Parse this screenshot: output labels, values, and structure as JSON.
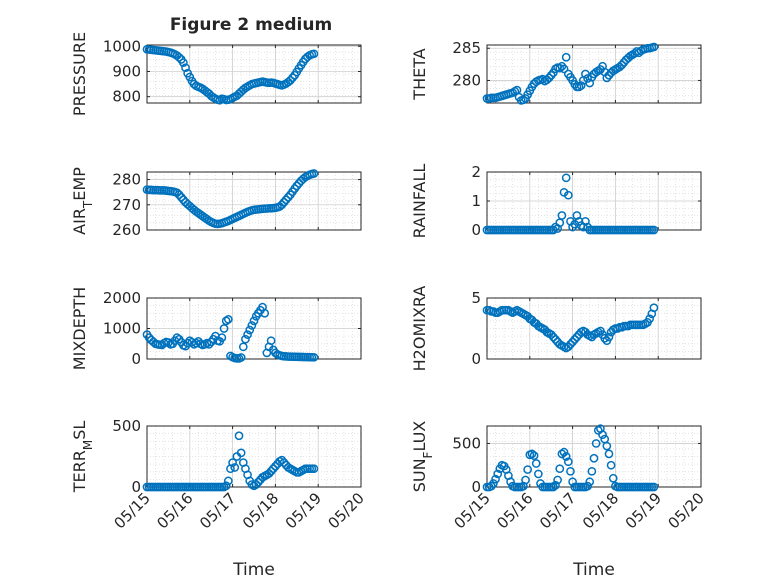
{
  "figure": {
    "title": "Figure 2 medium",
    "xlabel": "Time",
    "x_tick_labels": [
      "05/15",
      "05/16",
      "05/17",
      "05/18",
      "05/19",
      "05/20"
    ]
  },
  "style": {
    "marker_color": "#0072BD",
    "axes_color": "#262626",
    "grid_color": "#DADADA",
    "background": "#FFFFFF"
  },
  "chart_data": [
    {
      "type": "scatter",
      "ylabel": "PRESSURE",
      "xlim": [
        0,
        5
      ],
      "ylim": [
        775,
        1005
      ],
      "yticks": [
        800,
        900,
        1000
      ],
      "grid": true,
      "x": [
        0.0,
        0.05,
        0.1,
        0.15,
        0.2,
        0.25,
        0.3,
        0.35,
        0.4,
        0.45,
        0.5,
        0.55,
        0.6,
        0.65,
        0.7,
        0.75,
        0.8,
        0.85,
        0.9,
        0.95,
        1.0,
        1.05,
        1.1,
        1.15,
        1.2,
        1.25,
        1.3,
        1.35,
        1.4,
        1.45,
        1.5,
        1.55,
        1.6,
        1.65,
        1.7,
        1.75,
        1.8,
        1.85,
        1.9,
        1.95,
        2.0,
        2.05,
        2.1,
        2.15,
        2.2,
        2.25,
        2.3,
        2.35,
        2.4,
        2.45,
        2.5,
        2.55,
        2.6,
        2.65,
        2.7,
        2.75,
        2.8,
        2.85,
        2.9,
        2.95,
        3.0,
        3.05,
        3.1,
        3.15,
        3.2,
        3.25,
        3.3,
        3.35,
        3.4,
        3.45,
        3.5,
        3.55,
        3.6,
        3.65,
        3.7,
        3.75,
        3.8,
        3.85,
        3.9
      ],
      "y": [
        988,
        987,
        986,
        985,
        984,
        983,
        982,
        981,
        980,
        979,
        977,
        975,
        972,
        968,
        963,
        956,
        948,
        935,
        915,
        893,
        878,
        862,
        850,
        843,
        839,
        836,
        831,
        825,
        818,
        812,
        803,
        797,
        792,
        788,
        786,
        792,
        790,
        787,
        788,
        790,
        795,
        800,
        804,
        812,
        820,
        828,
        835,
        840,
        845,
        850,
        852,
        854,
        856,
        858,
        860,
        858,
        856,
        855,
        856,
        855,
        852,
        850,
        847,
        845,
        848,
        852,
        858,
        865,
        875,
        885,
        898,
        912,
        925,
        938,
        950,
        958,
        964,
        968,
        970
      ]
    },
    {
      "type": "scatter",
      "ylabel": "THETA",
      "xlim": [
        0,
        5
      ],
      "ylim": [
        276.5,
        285.5
      ],
      "yticks": [
        280,
        285
      ],
      "grid": true,
      "x": [
        0.0,
        0.05,
        0.1,
        0.15,
        0.2,
        0.25,
        0.3,
        0.35,
        0.4,
        0.45,
        0.5,
        0.55,
        0.6,
        0.65,
        0.7,
        0.75,
        0.8,
        0.85,
        0.9,
        0.95,
        1.0,
        1.05,
        1.1,
        1.15,
        1.2,
        1.25,
        1.3,
        1.35,
        1.4,
        1.45,
        1.5,
        1.55,
        1.6,
        1.65,
        1.7,
        1.75,
        1.8,
        1.85,
        1.9,
        1.95,
        2.0,
        2.05,
        2.1,
        2.15,
        2.2,
        2.25,
        2.3,
        2.35,
        2.4,
        2.45,
        2.5,
        2.55,
        2.6,
        2.65,
        2.7,
        2.75,
        2.8,
        2.85,
        2.9,
        2.95,
        3.0,
        3.05,
        3.1,
        3.15,
        3.2,
        3.25,
        3.3,
        3.35,
        3.4,
        3.45,
        3.5,
        3.55,
        3.6,
        3.65,
        3.7,
        3.75,
        3.8,
        3.85,
        3.9
      ],
      "y": [
        277.2,
        277.2,
        277.3,
        277.3,
        277.3,
        277.4,
        277.5,
        277.6,
        277.7,
        277.8,
        277.9,
        278.0,
        278.1,
        278.3,
        278.5,
        277.4,
        276.9,
        277.0,
        277.2,
        277.8,
        278.4,
        279.0,
        279.5,
        279.8,
        280.0,
        280.1,
        280.2,
        279.9,
        280.1,
        280.4,
        280.8,
        281.2,
        281.8,
        282.0,
        281.9,
        282.2,
        281.8,
        283.6,
        281.0,
        280.5,
        280.0,
        279.4,
        279.0,
        279.0,
        279.2,
        280.0,
        281.0,
        280.3,
        279.6,
        280.5,
        281.0,
        281.3,
        281.5,
        281.7,
        282.2,
        281.3,
        280.4,
        280.8,
        281.2,
        281.5,
        281.7,
        281.9,
        282.1,
        282.4,
        282.8,
        283.2,
        283.5,
        283.8,
        284.0,
        284.2,
        284.5,
        284.3,
        284.6,
        284.8,
        284.9,
        285.0,
        285.0,
        285.1,
        285.2
      ]
    },
    {
      "type": "scatter",
      "ylabel": "AIR_TEMP",
      "xlim": [
        0,
        5
      ],
      "ylim": [
        260,
        283
      ],
      "yticks": [
        260,
        270,
        280
      ],
      "grid": true,
      "x": [
        0.0,
        0.05,
        0.1,
        0.15,
        0.2,
        0.25,
        0.3,
        0.35,
        0.4,
        0.45,
        0.5,
        0.55,
        0.6,
        0.65,
        0.7,
        0.75,
        0.8,
        0.85,
        0.9,
        0.95,
        1.0,
        1.05,
        1.1,
        1.15,
        1.2,
        1.25,
        1.3,
        1.35,
        1.4,
        1.45,
        1.5,
        1.55,
        1.6,
        1.65,
        1.7,
        1.75,
        1.8,
        1.85,
        1.9,
        1.95,
        2.0,
        2.05,
        2.1,
        2.15,
        2.2,
        2.25,
        2.3,
        2.35,
        2.4,
        2.45,
        2.5,
        2.55,
        2.6,
        2.65,
        2.7,
        2.75,
        2.8,
        2.85,
        2.9,
        2.95,
        3.0,
        3.05,
        3.1,
        3.15,
        3.2,
        3.25,
        3.3,
        3.35,
        3.4,
        3.45,
        3.5,
        3.55,
        3.6,
        3.65,
        3.7,
        3.75,
        3.8,
        3.85,
        3.9
      ],
      "y": [
        276.0,
        275.9,
        275.9,
        275.8,
        275.8,
        275.8,
        275.7,
        275.7,
        275.7,
        275.6,
        275.5,
        275.4,
        275.3,
        275.1,
        274.8,
        274.0,
        273.0,
        272.0,
        271.0,
        270.2,
        269.5,
        268.7,
        268.0,
        267.3,
        266.7,
        266.1,
        265.5,
        264.9,
        264.3,
        263.7,
        263.2,
        262.8,
        262.5,
        262.4,
        262.5,
        262.7,
        263.0,
        263.3,
        263.6,
        264.0,
        264.4,
        264.8,
        265.2,
        265.6,
        266.0,
        266.4,
        266.8,
        267.2,
        267.5,
        267.8,
        268.0,
        268.1,
        268.2,
        268.3,
        268.4,
        268.5,
        268.5,
        268.6,
        268.6,
        268.7,
        268.8,
        269.0,
        269.3,
        270.0,
        271.0,
        272.0,
        273.0,
        274.0,
        275.2,
        276.4,
        277.5,
        278.5,
        279.5,
        280.3,
        281.0,
        281.5,
        281.9,
        282.2,
        282.4
      ]
    },
    {
      "type": "scatter",
      "ylabel": "RAINFALL",
      "xlim": [
        0,
        5
      ],
      "ylim": [
        0,
        2
      ],
      "yticks": [
        0,
        1,
        2
      ],
      "grid": true,
      "x": [
        0.0,
        0.05,
        0.1,
        0.15,
        0.2,
        0.25,
        0.3,
        0.35,
        0.4,
        0.45,
        0.5,
        0.55,
        0.6,
        0.65,
        0.7,
        0.75,
        0.8,
        0.85,
        0.9,
        0.95,
        1.0,
        1.05,
        1.1,
        1.15,
        1.2,
        1.25,
        1.3,
        1.35,
        1.4,
        1.45,
        1.5,
        1.55,
        1.6,
        1.65,
        1.7,
        1.75,
        1.8,
        1.85,
        1.9,
        1.95,
        2.0,
        2.05,
        2.1,
        2.15,
        2.2,
        2.25,
        2.3,
        2.35,
        2.4,
        2.45,
        2.5,
        2.55,
        2.6,
        2.65,
        2.7,
        2.75,
        2.8,
        2.85,
        2.9,
        2.95,
        3.0,
        3.05,
        3.1,
        3.15,
        3.2,
        3.25,
        3.3,
        3.35,
        3.4,
        3.45,
        3.5,
        3.55,
        3.6,
        3.65,
        3.7,
        3.75,
        3.8,
        3.85,
        3.9
      ],
      "y": [
        0,
        0,
        0,
        0,
        0,
        0,
        0,
        0,
        0,
        0,
        0,
        0,
        0,
        0,
        0,
        0,
        0,
        0,
        0,
        0,
        0,
        0,
        0,
        0,
        0,
        0,
        0,
        0,
        0,
        0,
        0,
        0,
        0.1,
        0.05,
        0.25,
        0.5,
        1.3,
        1.8,
        1.2,
        0.3,
        0.1,
        0.2,
        0.5,
        0.3,
        0.15,
        0.1,
        0.3,
        0.1,
        0,
        0,
        0,
        0,
        0,
        0,
        0,
        0,
        0,
        0,
        0,
        0,
        0,
        0,
        0,
        0,
        0,
        0,
        0,
        0,
        0,
        0,
        0,
        0,
        0,
        0,
        0,
        0,
        0,
        0,
        0
      ]
    },
    {
      "type": "scatter",
      "ylabel": "MIXDEPTH",
      "xlim": [
        0,
        5
      ],
      "ylim": [
        0,
        2000
      ],
      "yticks": [
        0,
        1000,
        2000
      ],
      "grid": true,
      "x": [
        0.0,
        0.05,
        0.1,
        0.15,
        0.2,
        0.25,
        0.3,
        0.35,
        0.4,
        0.45,
        0.5,
        0.55,
        0.6,
        0.65,
        0.7,
        0.75,
        0.8,
        0.85,
        0.9,
        0.95,
        1.0,
        1.05,
        1.1,
        1.15,
        1.2,
        1.25,
        1.3,
        1.35,
        1.4,
        1.45,
        1.5,
        1.55,
        1.6,
        1.65,
        1.7,
        1.75,
        1.8,
        1.85,
        1.9,
        1.95,
        2.0,
        2.05,
        2.1,
        2.15,
        2.2,
        2.25,
        2.3,
        2.35,
        2.4,
        2.45,
        2.5,
        2.55,
        2.6,
        2.65,
        2.7,
        2.75,
        2.8,
        2.85,
        2.9,
        2.95,
        3.0,
        3.05,
        3.1,
        3.15,
        3.2,
        3.25,
        3.3,
        3.35,
        3.4,
        3.45,
        3.5,
        3.55,
        3.6,
        3.65,
        3.7,
        3.75,
        3.8,
        3.85,
        3.9
      ],
      "y": [
        800,
        700,
        620,
        560,
        500,
        480,
        470,
        460,
        520,
        560,
        540,
        480,
        500,
        600,
        700,
        650,
        550,
        450,
        420,
        520,
        600,
        550,
        480,
        520,
        580,
        500,
        460,
        480,
        520,
        480,
        560,
        650,
        750,
        600,
        580,
        700,
        1000,
        1250,
        1300,
        100,
        60,
        30,
        20,
        20,
        50,
        400,
        650,
        800,
        950,
        1100,
        1250,
        1400,
        1500,
        1600,
        1700,
        1500,
        200,
        400,
        600,
        300,
        200,
        150,
        120,
        100,
        90,
        85,
        80,
        78,
        76,
        74,
        72,
        70,
        68,
        66,
        64,
        62,
        60,
        58,
        56
      ]
    },
    {
      "type": "scatter",
      "ylabel": "H2OMIXRA",
      "xlim": [
        0,
        5
      ],
      "ylim": [
        0,
        5
      ],
      "yticks": [
        0,
        5
      ],
      "grid": true,
      "x": [
        0.0,
        0.05,
        0.1,
        0.15,
        0.2,
        0.25,
        0.3,
        0.35,
        0.4,
        0.45,
        0.5,
        0.55,
        0.6,
        0.65,
        0.7,
        0.75,
        0.8,
        0.85,
        0.9,
        0.95,
        1.0,
        1.05,
        1.1,
        1.15,
        1.2,
        1.25,
        1.3,
        1.35,
        1.4,
        1.45,
        1.5,
        1.55,
        1.6,
        1.65,
        1.7,
        1.75,
        1.8,
        1.85,
        1.9,
        1.95,
        2.0,
        2.05,
        2.1,
        2.15,
        2.2,
        2.25,
        2.3,
        2.35,
        2.4,
        2.45,
        2.5,
        2.55,
        2.6,
        2.65,
        2.7,
        2.75,
        2.8,
        2.85,
        2.9,
        2.95,
        3.0,
        3.05,
        3.1,
        3.15,
        3.2,
        3.25,
        3.3,
        3.35,
        3.4,
        3.45,
        3.5,
        3.55,
        3.6,
        3.65,
        3.7,
        3.75,
        3.8,
        3.85,
        3.9
      ],
      "y": [
        4.0,
        4.0,
        3.9,
        3.9,
        3.8,
        3.8,
        3.9,
        4.0,
        4.0,
        4.0,
        4.0,
        3.9,
        3.8,
        3.9,
        4.0,
        3.9,
        3.8,
        3.7,
        3.6,
        3.5,
        3.3,
        3.2,
        3.0,
        2.9,
        2.7,
        2.6,
        2.5,
        2.4,
        2.2,
        2.1,
        2.0,
        1.8,
        1.6,
        1.4,
        1.2,
        1.1,
        1.0,
        0.9,
        1.0,
        1.2,
        1.4,
        1.6,
        1.8,
        2.0,
        2.2,
        2.3,
        2.2,
        2.0,
        1.9,
        1.8,
        2.0,
        2.1,
        2.2,
        2.3,
        2.0,
        1.7,
        1.5,
        1.8,
        2.2,
        2.4,
        2.5,
        2.5,
        2.6,
        2.6,
        2.7,
        2.7,
        2.7,
        2.8,
        2.8,
        2.8,
        2.8,
        2.8,
        2.8,
        2.8,
        2.9,
        3.0,
        3.3,
        3.7,
        4.2
      ]
    },
    {
      "type": "scatter",
      "ylabel": "TERR_MSL",
      "xlim": [
        0,
        5
      ],
      "ylim": [
        0,
        500
      ],
      "yticks": [
        0,
        500
      ],
      "grid": true,
      "x": [
        0.0,
        0.05,
        0.1,
        0.15,
        0.2,
        0.25,
        0.3,
        0.35,
        0.4,
        0.45,
        0.5,
        0.55,
        0.6,
        0.65,
        0.7,
        0.75,
        0.8,
        0.85,
        0.9,
        0.95,
        1.0,
        1.05,
        1.1,
        1.15,
        1.2,
        1.25,
        1.3,
        1.35,
        1.4,
        1.45,
        1.5,
        1.55,
        1.6,
        1.65,
        1.7,
        1.75,
        1.8,
        1.85,
        1.9,
        1.95,
        2.0,
        2.05,
        2.1,
        2.15,
        2.2,
        2.25,
        2.3,
        2.35,
        2.4,
        2.45,
        2.5,
        2.55,
        2.6,
        2.65,
        2.7,
        2.75,
        2.8,
        2.85,
        2.9,
        2.95,
        3.0,
        3.05,
        3.1,
        3.15,
        3.2,
        3.25,
        3.3,
        3.35,
        3.4,
        3.45,
        3.5,
        3.55,
        3.6,
        3.65,
        3.7,
        3.75,
        3.8,
        3.85,
        3.9
      ],
      "y": [
        0,
        0,
        0,
        0,
        0,
        0,
        0,
        0,
        0,
        0,
        0,
        0,
        0,
        0,
        0,
        0,
        0,
        0,
        0,
        0,
        0,
        0,
        0,
        0,
        0,
        0,
        0,
        0,
        0,
        0,
        0,
        0,
        0,
        0,
        0,
        0,
        0,
        10,
        50,
        150,
        200,
        160,
        250,
        420,
        280,
        200,
        150,
        100,
        50,
        20,
        10,
        20,
        40,
        60,
        80,
        90,
        100,
        110,
        130,
        150,
        170,
        190,
        210,
        220,
        200,
        180,
        160,
        150,
        140,
        130,
        120,
        120,
        130,
        140,
        150,
        150,
        150,
        150,
        150
      ]
    },
    {
      "type": "scatter",
      "ylabel": "SUN_FLUX",
      "xlim": [
        0,
        5
      ],
      "ylim": [
        0,
        700
      ],
      "yticks": [
        0,
        500
      ],
      "grid": true,
      "x": [
        0.0,
        0.05,
        0.1,
        0.15,
        0.2,
        0.25,
        0.3,
        0.35,
        0.4,
        0.45,
        0.5,
        0.55,
        0.6,
        0.65,
        0.7,
        0.75,
        0.8,
        0.85,
        0.9,
        0.95,
        1.0,
        1.05,
        1.1,
        1.15,
        1.2,
        1.25,
        1.3,
        1.35,
        1.4,
        1.45,
        1.5,
        1.55,
        1.6,
        1.65,
        1.7,
        1.75,
        1.8,
        1.85,
        1.9,
        1.95,
        2.0,
        2.05,
        2.1,
        2.15,
        2.2,
        2.25,
        2.3,
        2.35,
        2.4,
        2.45,
        2.5,
        2.55,
        2.6,
        2.65,
        2.7,
        2.75,
        2.8,
        2.85,
        2.9,
        2.95,
        3.0,
        3.05,
        3.1,
        3.15,
        3.2,
        3.25,
        3.3,
        3.35,
        3.4,
        3.45,
        3.5,
        3.55,
        3.6,
        3.65,
        3.7,
        3.75,
        3.8,
        3.85,
        3.9
      ],
      "y": [
        0,
        0,
        10,
        40,
        90,
        150,
        210,
        250,
        240,
        200,
        130,
        60,
        10,
        0,
        0,
        0,
        0,
        10,
        80,
        200,
        370,
        380,
        360,
        270,
        150,
        40,
        0,
        0,
        0,
        0,
        0,
        0,
        20,
        80,
        210,
        380,
        400,
        350,
        290,
        180,
        60,
        0,
        0,
        0,
        0,
        0,
        0,
        10,
        60,
        180,
        330,
        500,
        650,
        670,
        600,
        550,
        470,
        380,
        250,
        100,
        10,
        0,
        0,
        0,
        0,
        0,
        0,
        0,
        0,
        0,
        0,
        0,
        0,
        0,
        0,
        0,
        0,
        0,
        0
      ]
    }
  ]
}
